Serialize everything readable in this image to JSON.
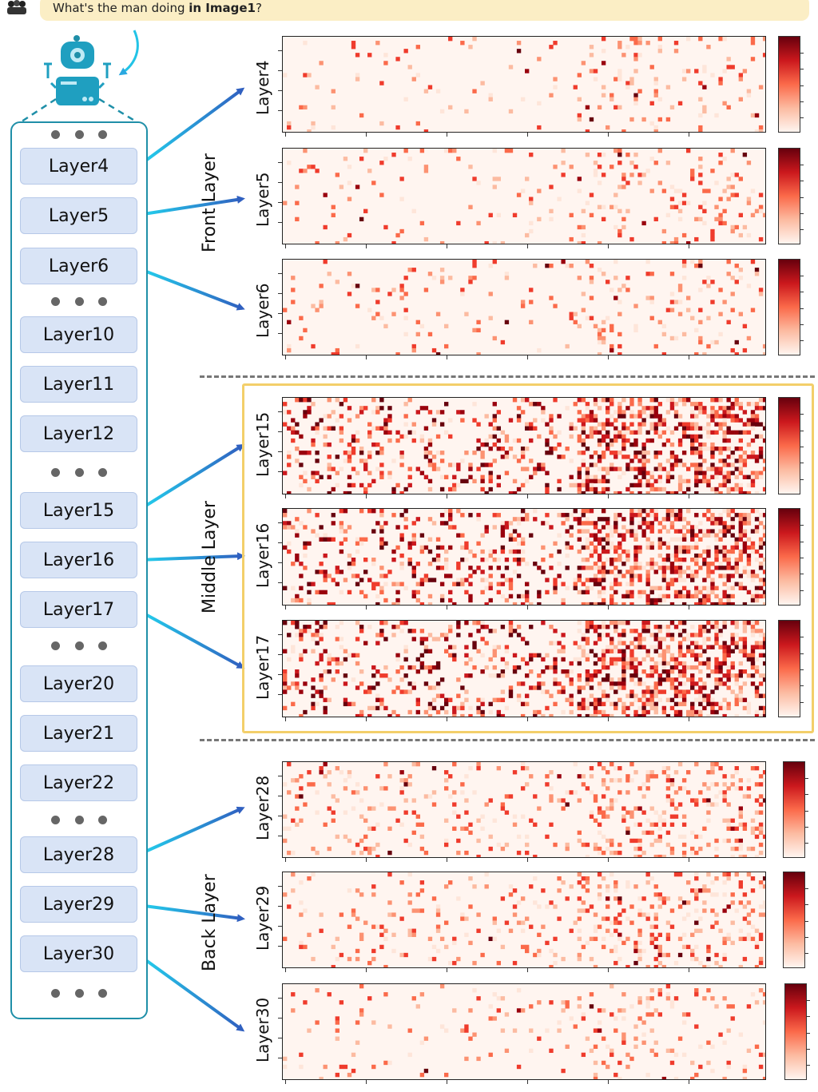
{
  "question": {
    "prefix": "What's the man doing ",
    "bold": "in Image1",
    "suffix": "?"
  },
  "icons": {
    "user": "user-group-icon",
    "robot": "robot-icon"
  },
  "layers_panel": [
    {
      "type": "dots"
    },
    {
      "type": "layer",
      "label": "Layer4"
    },
    {
      "type": "layer",
      "label": "Layer5"
    },
    {
      "type": "layer",
      "label": "Layer6"
    },
    {
      "type": "dots"
    },
    {
      "type": "layer",
      "label": "Layer10"
    },
    {
      "type": "layer",
      "label": "Layer11"
    },
    {
      "type": "layer",
      "label": "Layer12"
    },
    {
      "type": "dots"
    },
    {
      "type": "layer",
      "label": "Layer15"
    },
    {
      "type": "layer",
      "label": "Layer16"
    },
    {
      "type": "layer",
      "label": "Layer17"
    },
    {
      "type": "dots"
    },
    {
      "type": "layer",
      "label": "Layer20"
    },
    {
      "type": "layer",
      "label": "Layer21"
    },
    {
      "type": "layer",
      "label": "Layer22"
    },
    {
      "type": "dots"
    },
    {
      "type": "layer",
      "label": "Layer28"
    },
    {
      "type": "layer",
      "label": "Layer29"
    },
    {
      "type": "layer",
      "label": "Layer30"
    },
    {
      "type": "dots"
    }
  ],
  "groups": [
    {
      "label": "Front Layer"
    },
    {
      "label": "Middle Layer"
    },
    {
      "label": "Back Layer"
    }
  ],
  "heatmaps": [
    {
      "label": "Layer4",
      "group": "front",
      "intensity": "low"
    },
    {
      "label": "Layer5",
      "group": "front",
      "intensity": "low"
    },
    {
      "label": "Layer6",
      "group": "front",
      "intensity": "low"
    },
    {
      "label": "Layer15",
      "group": "middle",
      "intensity": "high"
    },
    {
      "label": "Layer16",
      "group": "middle",
      "intensity": "high"
    },
    {
      "label": "Layer17",
      "group": "middle",
      "intensity": "high"
    },
    {
      "label": "Layer28",
      "group": "back",
      "intensity": "medium"
    },
    {
      "label": "Layer29",
      "group": "back",
      "intensity": "medium"
    },
    {
      "label": "Layer30",
      "group": "back",
      "intensity": "low"
    }
  ],
  "colors": {
    "accent_teal": "#1f8fa8",
    "arrow_cyan": "#22c3e6",
    "arrow_blue": "#3b6fc4",
    "button_fill": "#d9e4f6",
    "question_bg": "#fbeec5",
    "highlight_box": "#f3cf6a",
    "heat_dark": "#67000d",
    "heat_light": "#fff5f0"
  }
}
